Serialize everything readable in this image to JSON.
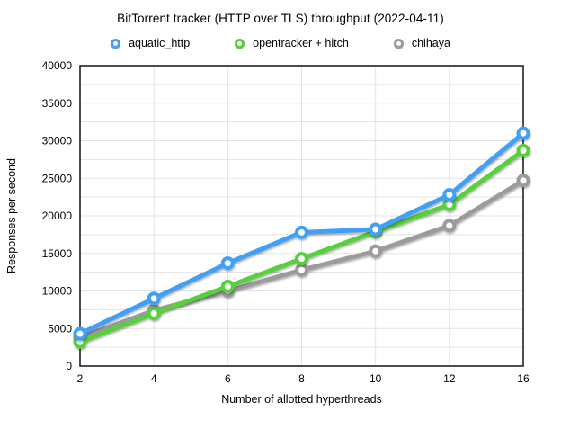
{
  "chart_data": {
    "type": "line",
    "title": "BitTorrent tracker (HTTP over TLS) throughput (2022-04-11)",
    "categories": [
      2,
      4,
      6,
      8,
      10,
      12,
      16
    ],
    "series": [
      {
        "name": "aquatic_http",
        "color": "#3FA0F6",
        "values": [
          4300,
          9000,
          13700,
          17800,
          18200,
          22800,
          31000
        ]
      },
      {
        "name": "opentracker + hitch",
        "color": "#57D13A",
        "values": [
          3200,
          7000,
          10600,
          14300,
          17900,
          21500,
          28700
        ]
      },
      {
        "name": "chihaya",
        "color": "#9B9B9B",
        "values": [
          3800,
          7400,
          10000,
          12800,
          15300,
          18700,
          24700
        ]
      }
    ],
    "xlabel": "Number of allotted hyperthreads",
    "ylabel": "Responses per second",
    "ylim": [
      0,
      40000
    ],
    "y_tick_step": 5000,
    "y_grid_step": 2500,
    "x_tick_labels": [
      "2",
      "4",
      "6",
      "8",
      "10",
      "12",
      "16"
    ],
    "y_tick_labels": [
      "0",
      "5000",
      "10000",
      "15000",
      "20000",
      "25000",
      "30000",
      "35000",
      "40000"
    ],
    "grid": true,
    "legend_position": "top",
    "marker": "open-circle"
  },
  "colors": {
    "background": "#FFFFFF",
    "grid": "#E3E3E3",
    "axis_border": "#222222",
    "text": "#000000"
  }
}
